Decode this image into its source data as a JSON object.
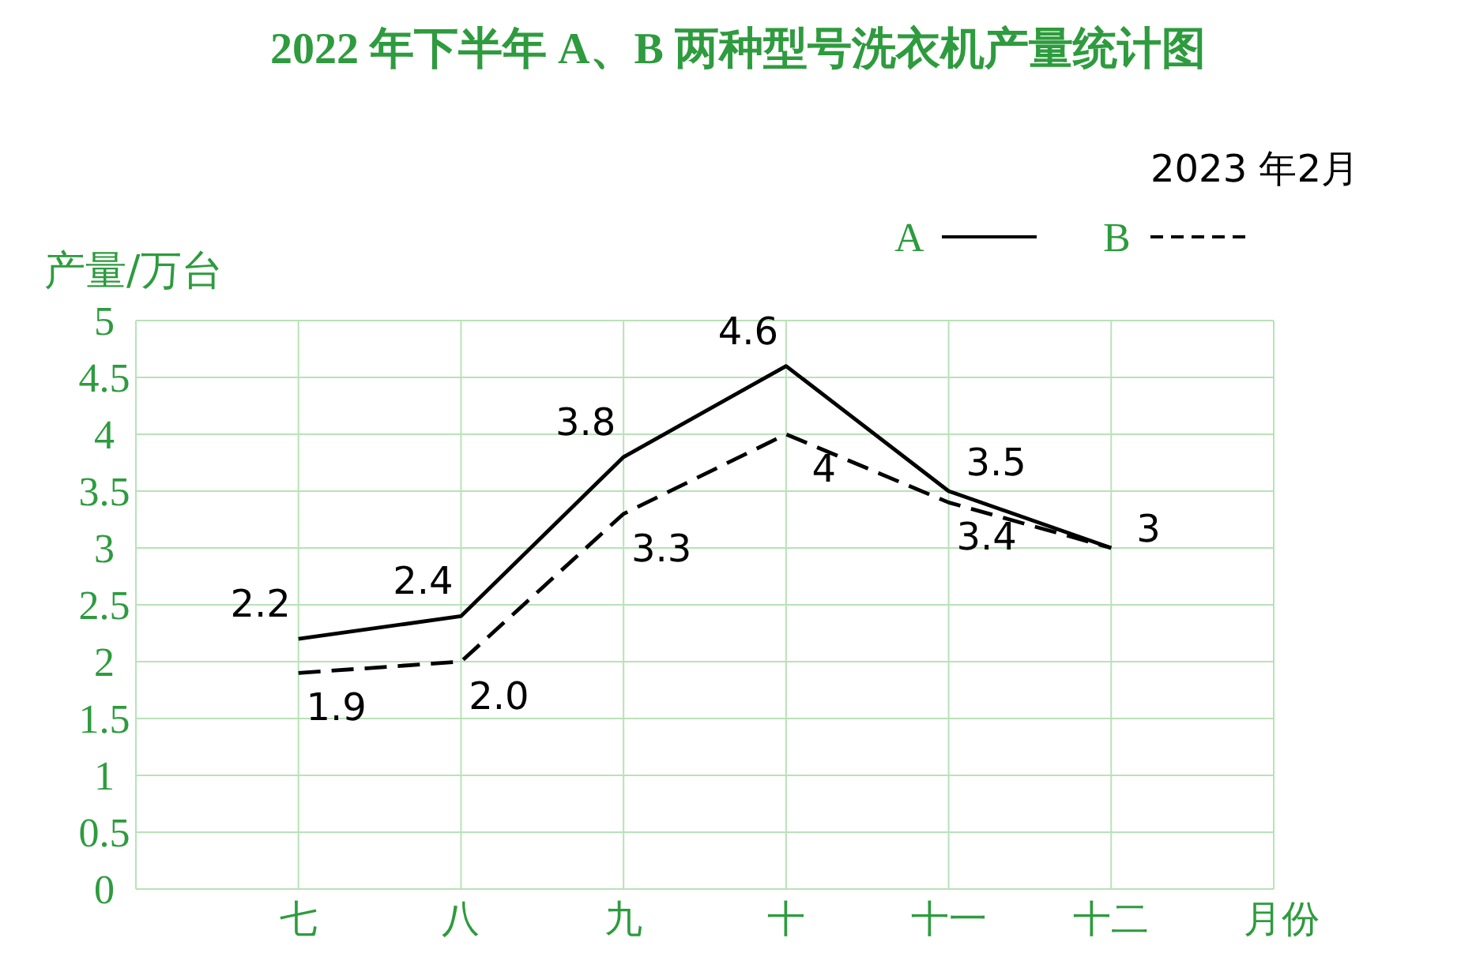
{
  "chart_data": {
    "type": "line",
    "title": "2022 年下半年 A、B 两种型号洗衣机产量统计图",
    "ylabel": "产量/万台",
    "xlabel": "月份",
    "annotations": [
      "2023 年2月"
    ],
    "categories": [
      "七",
      "八",
      "九",
      "十",
      "十一",
      "十二"
    ],
    "series": [
      {
        "name": "A",
        "color": "#000000",
        "line_style": "solid",
        "values": [
          2.2,
          2.4,
          3.8,
          4.6,
          3.5,
          3
        ],
        "value_labels": [
          "2.2",
          "2.4",
          "3.8",
          "4.6",
          "3.5",
          "3"
        ]
      },
      {
        "name": "B",
        "color": "#000000",
        "line_style": "dashed",
        "values": [
          1.9,
          2.0,
          3.3,
          4,
          3.4,
          3
        ],
        "value_labels": [
          "1.9",
          "2.0",
          "3.3",
          "4",
          "3.4",
          null
        ]
      }
    ],
    "ylim": [
      0,
      5
    ],
    "yticks": [
      0,
      0.5,
      1,
      1.5,
      2,
      2.5,
      3,
      3.5,
      4,
      4.5,
      5
    ],
    "grid": true,
    "legend": "top right"
  }
}
